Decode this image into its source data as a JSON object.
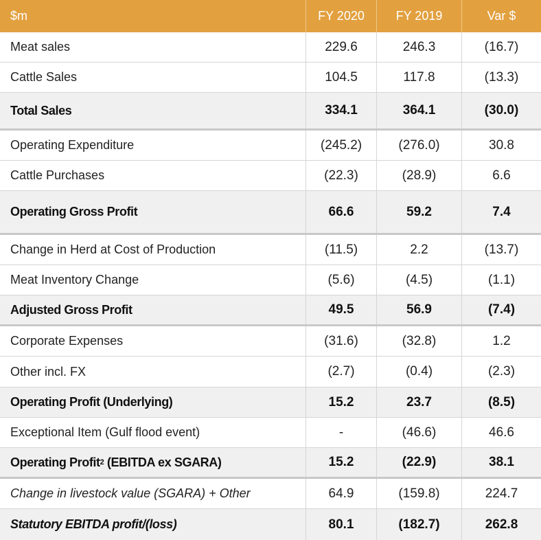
{
  "header": {
    "label": "$m",
    "col1": "FY 2020",
    "col2": "FY 2019",
    "col3": "Var $"
  },
  "rows": [
    {
      "label": "Meat sales",
      "fy2020": "229.6",
      "fy2019": "246.3",
      "var": "(16.7)"
    },
    {
      "label": "Cattle Sales",
      "fy2020": "104.5",
      "fy2019": "117.8",
      "var": "(13.3)"
    },
    {
      "label": "Total Sales",
      "fy2020": "334.1",
      "fy2019": "364.1",
      "var": "(30.0)"
    },
    {
      "label": "Operating Expenditure",
      "fy2020": "(245.2)",
      "fy2019": "(276.0)",
      "var": "30.8"
    },
    {
      "label": "Cattle Purchases",
      "fy2020": "(22.3)",
      "fy2019": "(28.9)",
      "var": "6.6"
    },
    {
      "label": "Operating Gross Profit",
      "fy2020": "66.6",
      "fy2019": "59.2",
      "var": "7.4"
    },
    {
      "label": "Change in Herd at Cost of Production",
      "fy2020": "(11.5)",
      "fy2019": "2.2",
      "var": "(13.7)"
    },
    {
      "label": "Meat Inventory Change",
      "fy2020": "(5.6)",
      "fy2019": "(4.5)",
      "var": "(1.1)"
    },
    {
      "label": "Adjusted Gross Profit",
      "fy2020": "49.5",
      "fy2019": "56.9",
      "var": "(7.4)"
    },
    {
      "label": "Corporate Expenses",
      "fy2020": "(31.6)",
      "fy2019": "(32.8)",
      "var": "1.2"
    },
    {
      "label": "Other incl. FX",
      "fy2020": "(2.7)",
      "fy2019": "(0.4)",
      "var": "(2.3)"
    },
    {
      "label": "Operating Profit (Underlying)",
      "fy2020": "15.2",
      "fy2019": "23.7",
      "var": "(8.5)"
    },
    {
      "label": "Exceptional Item (Gulf flood event)",
      "fy2020": "-",
      "fy2019": "(46.6)",
      "var": "46.6"
    },
    {
      "label": "Operating Profit",
      "label_sup": "2",
      "label_suffix": " (EBITDA ex SGARA)",
      "fy2020": "15.2",
      "fy2019": "(22.9)",
      "var": "38.1"
    },
    {
      "label": "Change in livestock value (SGARA) + Other",
      "fy2020": "64.9",
      "fy2019": "(159.8)",
      "var": "224.7"
    },
    {
      "label": "Statutory EBITDA profit/(loss)",
      "fy2020": "80.1",
      "fy2019": "(182.7)",
      "var": "262.8"
    }
  ]
}
